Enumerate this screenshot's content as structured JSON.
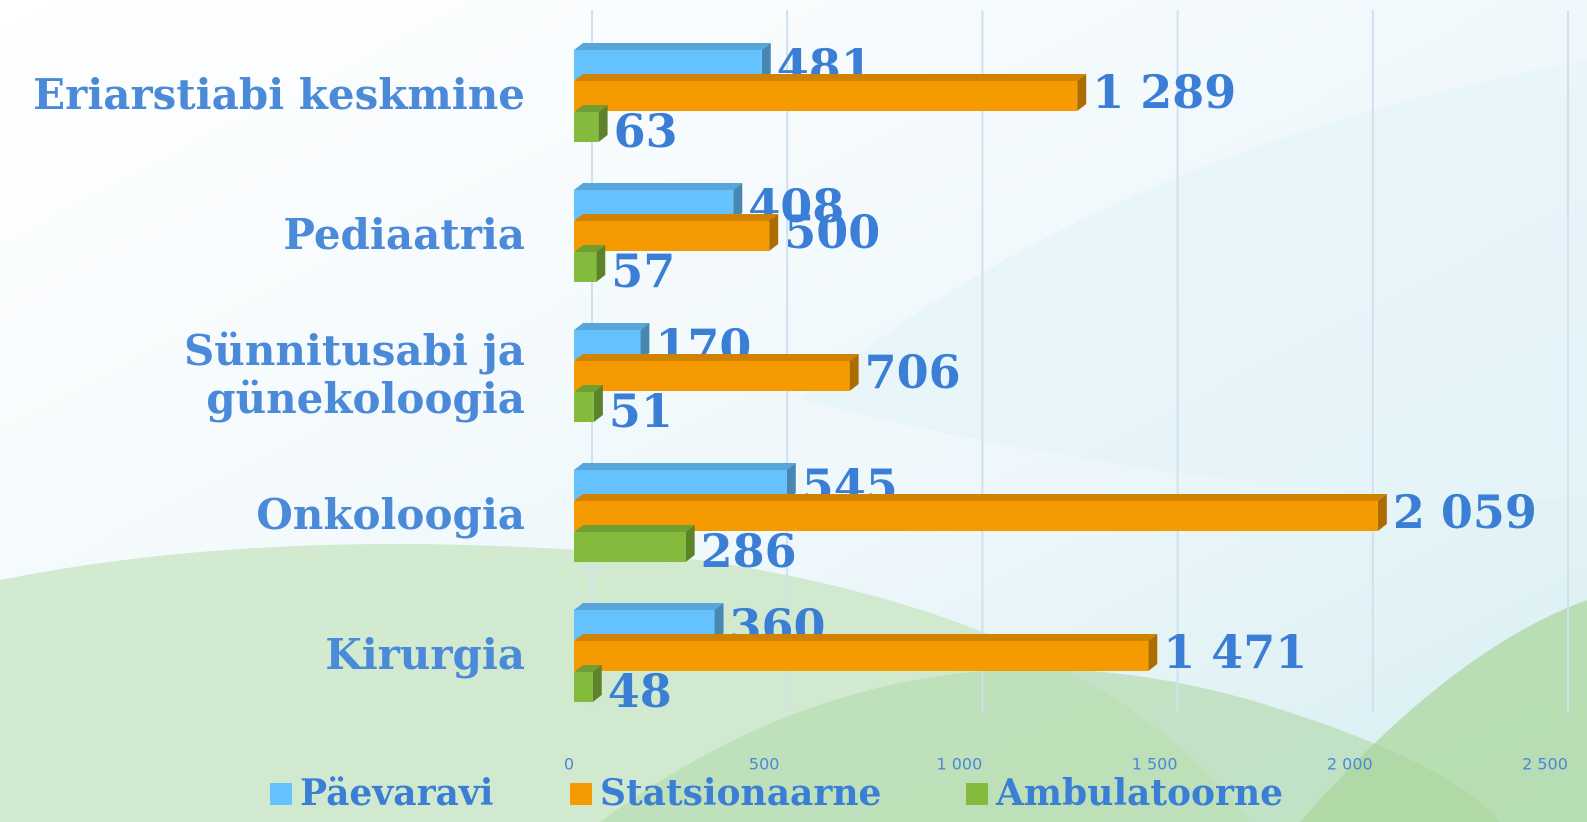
{
  "chart_data": {
    "type": "hbar3d",
    "categories": [
      "Eriarstiabi keskmine",
      "Pediaatria",
      "Sünnitusabi ja günekoloogia",
      "Onkoloogia",
      "Kirurgia"
    ],
    "series": [
      {
        "name": "Päevaravi",
        "color": "#66c2ff",
        "values": [
          481,
          408,
          170,
          545,
          360
        ]
      },
      {
        "name": "Statsionaarne",
        "color": "#f59a00",
        "values": [
          1289,
          500,
          706,
          2059,
          1471
        ],
        "value_labels": [
          "1 289",
          "500",
          "706",
          "2 059",
          "1 471"
        ]
      },
      {
        "name": "Ambulatoorne",
        "color": "#85bb3c",
        "values": [
          63,
          57,
          51,
          286,
          48
        ]
      }
    ],
    "xlim": [
      0,
      2500
    ],
    "xticks": [
      0,
      500,
      {
        "value": 1000,
        "label": "1 000"
      },
      {
        "value": 1500,
        "label": "1 500"
      },
      {
        "value": 2000,
        "label": "2 000"
      },
      {
        "value": 2500,
        "label": "2 500"
      }
    ],
    "grid": true,
    "legend": "bottom"
  }
}
